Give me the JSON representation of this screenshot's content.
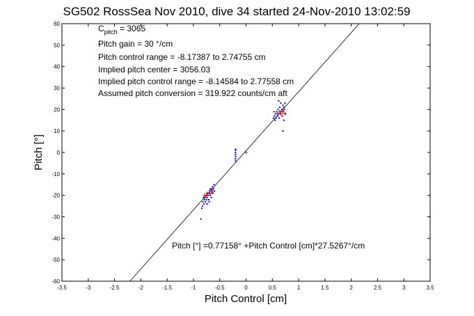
{
  "chart_data": {
    "type": "scatter",
    "title": "SG502 RossSea Nov 2010, dive 34 started 24-Nov-2010 13:02:59",
    "xlabel": "Pitch Control [cm]",
    "ylabel": "Pitch [°]",
    "xlim": [
      -3.5,
      3.5
    ],
    "ylim": [
      -60,
      60
    ],
    "xticks": [
      -3.5,
      -3,
      -2.5,
      -2,
      -1.5,
      -1,
      -0.5,
      0,
      0.5,
      1,
      1.5,
      2,
      2.5,
      3,
      3.5
    ],
    "yticks": [
      -60,
      -50,
      -40,
      -30,
      -20,
      -10,
      0,
      10,
      20,
      30,
      40,
      50,
      60
    ],
    "xtick_labels": [
      "-3.5",
      "-3",
      "-2.5",
      "-2",
      "-1.5",
      "-1",
      "-0.5",
      "0",
      "0.5",
      "1",
      "1.5",
      "2",
      "2.5",
      "3",
      "3.5"
    ],
    "ytick_labels": [
      "-60",
      "-50",
      "-40",
      "-30",
      "-20",
      "-10",
      "0",
      "10",
      "20",
      "30",
      "40",
      "50",
      "60"
    ],
    "grid": false,
    "annotations": {
      "c_pitch_main": "C",
      "c_pitch_sub": "pitch",
      "c_pitch_value": " = 3065",
      "pitch_gain": "Pitch gain = 30 °/cm",
      "pitch_control_range": "Pitch control range = -8.17387 to 2.74755 cm",
      "implied_pitch_center": "Implied pitch center = 3056.03",
      "implied_pitch_control_range": "Implied pitch control range = -8.14584 to 2.77558 cm",
      "assumed_pitch_conversion": "Assumed pitch conversion = 319.922 counts/cm aft",
      "fit_equation": "Pitch [°] =0.77158° +Pitch Control [cm]*27.5267°/cm"
    },
    "fit_line": {
      "intercept": 0.77158,
      "slope": 27.5267,
      "color": "#000000"
    },
    "series": [
      {
        "color": "#0000cc",
        "marker": "dot",
        "points": [
          [
            -0.82,
            -23
          ],
          [
            -0.8,
            -24
          ],
          [
            -0.79,
            -22
          ],
          [
            -0.78,
            -21
          ],
          [
            -0.77,
            -23
          ],
          [
            -0.76,
            -20
          ],
          [
            -0.75,
            -22
          ],
          [
            -0.74,
            -21
          ],
          [
            -0.73,
            -19
          ],
          [
            -0.72,
            -20
          ],
          [
            -0.71,
            -22
          ],
          [
            -0.7,
            -19
          ],
          [
            -0.69,
            -18
          ],
          [
            -0.68,
            -20
          ],
          [
            -0.67,
            -17
          ],
          [
            -0.66,
            -19
          ],
          [
            -0.65,
            -18
          ],
          [
            -0.64,
            -16
          ],
          [
            -0.63,
            -19
          ],
          [
            -0.62,
            -17
          ],
          [
            -0.61,
            -15
          ],
          [
            -0.6,
            -18
          ],
          [
            -0.83,
            -25
          ],
          [
            -0.81,
            -21
          ],
          [
            -0.74,
            -24
          ],
          [
            -0.7,
            -23
          ],
          [
            -0.68,
            -17
          ],
          [
            -0.66,
            -21
          ],
          [
            -0.86,
            -31
          ],
          [
            -0.84,
            -26
          ],
          [
            -0.2,
            1
          ],
          [
            -0.2,
            -1
          ],
          [
            -0.2,
            -2
          ],
          [
            -0.2,
            -3
          ],
          [
            -0.2,
            -4
          ],
          [
            -0.2,
            0
          ],
          [
            -0.2,
            1.5
          ],
          [
            0.52,
            16
          ],
          [
            0.54,
            17
          ],
          [
            0.55,
            15
          ],
          [
            0.56,
            18
          ],
          [
            0.57,
            16
          ],
          [
            0.58,
            19
          ],
          [
            0.6,
            17
          ],
          [
            0.61,
            20
          ],
          [
            0.62,
            18
          ],
          [
            0.63,
            16
          ],
          [
            0.64,
            21
          ],
          [
            0.65,
            19
          ],
          [
            0.66,
            23
          ],
          [
            0.67,
            18
          ],
          [
            0.68,
            20
          ],
          [
            0.69,
            17
          ],
          [
            0.7,
            22
          ],
          [
            0.71,
            19
          ],
          [
            0.72,
            21
          ],
          [
            0.73,
            20
          ],
          [
            0.74,
            23
          ],
          [
            0.75,
            18
          ],
          [
            0.7,
            10
          ],
          [
            0.62,
            24
          ],
          [
            0.53,
            19
          ],
          [
            0.72,
            15
          ]
        ]
      },
      {
        "color": "#ff0000",
        "marker": "plus",
        "points": [
          [
            -0.79,
            -20
          ],
          [
            -0.74,
            -19
          ],
          [
            -0.69,
            -19
          ],
          [
            -0.64,
            -18
          ],
          [
            -0.75,
            -20
          ],
          [
            0.0,
            0
          ],
          [
            0.6,
            18
          ],
          [
            0.66,
            18
          ],
          [
            0.7,
            19
          ],
          [
            0.64,
            19
          ],
          [
            0.74,
            18
          ]
        ]
      }
    ]
  }
}
